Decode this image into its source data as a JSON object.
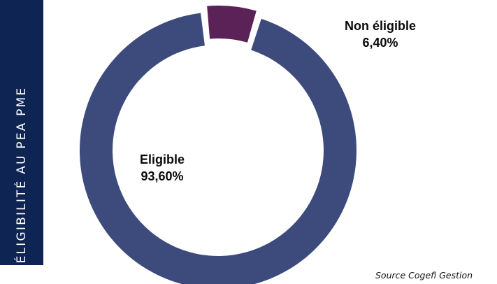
{
  "sidebar": {
    "title": "ÉLIGIBILITÉ AU PEA PME"
  },
  "source": "Source Cogefi Gestion",
  "chart_data": {
    "type": "pie",
    "title": "",
    "categories": [
      "Eligible",
      "Non éligible"
    ],
    "values": [
      93.6,
      6.4
    ],
    "value_labels": [
      "93,60%",
      "6,40%"
    ],
    "unit": "%",
    "donut": true,
    "colors": [
      "#3c4b7c",
      "#5b2258"
    ],
    "exploded": "Non éligible",
    "legend": "none"
  }
}
